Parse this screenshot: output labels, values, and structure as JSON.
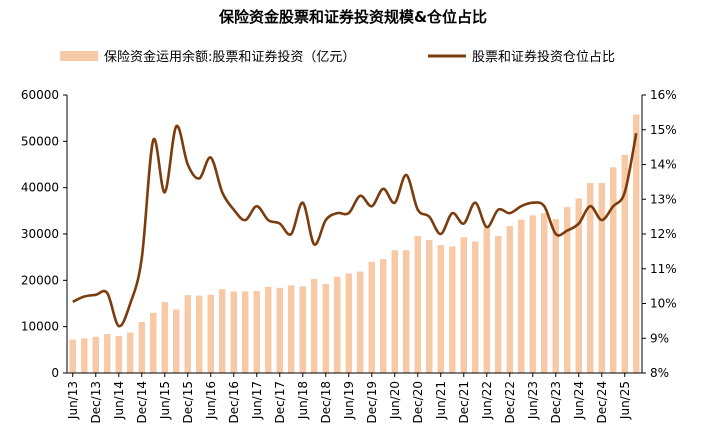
{
  "chart_data": {
    "type": "bar+line",
    "title": "保险资金股票和证券投资规模&仓位占比",
    "legend_position": "top",
    "grid": false,
    "colors": {
      "bar": "#F7C9A6",
      "line": "#7B3C0E"
    },
    "categories": [
      "Jun13",
      "Sep13",
      "Dec13",
      "Mar14",
      "Jun14",
      "Sep14",
      "Dec14",
      "Mar15",
      "Jun15",
      "Sep15",
      "Dec15",
      "Mar16",
      "Jun16",
      "Sep16",
      "Dec16",
      "Mar17",
      "Jun17",
      "Sep17",
      "Dec17",
      "Mar18",
      "Jun18",
      "Sep18",
      "Dec18",
      "Mar19",
      "Jun19",
      "Sep19",
      "Dec19",
      "Mar20",
      "Jun20",
      "Sep20",
      "Dec20",
      "Mar21",
      "Jun21",
      "Sep21",
      "Dec21",
      "Mar22",
      "Jun22",
      "Sep22",
      "Dec22",
      "Mar23",
      "Jun23",
      "Sep23",
      "Dec23",
      "Mar24",
      "Jun24",
      "Sep24",
      "Dec24",
      "Mar25",
      "Jun25",
      "Sep25"
    ],
    "x_tick_labels": [
      "Jun/13",
      "Dec/13",
      "Jun/14",
      "Dec/14",
      "Jun/15",
      "Dec/15",
      "Jun/16",
      "Dec/16",
      "Jun/17",
      "Dec/17",
      "Jun/18",
      "Dec/18",
      "Jun/19",
      "Dec/19",
      "Jun/20",
      "Dec/20",
      "Jun/21",
      "Dec/21",
      "Jun/22",
      "Dec/22",
      "Jun/23",
      "Dec/23",
      "Jun/24",
      "Dec/24",
      "Jun/25"
    ],
    "series": [
      {
        "name": "保险资金运用余额:股票和证券投资（亿元）",
        "type": "bar",
        "axis": "left",
        "values": [
          7200,
          7500,
          7800,
          8400,
          8000,
          8700,
          11000,
          13000,
          15300,
          13700,
          16800,
          16700,
          16900,
          18100,
          17600,
          17600,
          17700,
          18600,
          18400,
          18900,
          18700,
          20300,
          19200,
          20800,
          21500,
          21900,
          24000,
          24600,
          26500,
          26500,
          29600,
          28700,
          27600,
          27300,
          29300,
          28400,
          31500,
          29600,
          31700,
          33100,
          34000,
          34500,
          33200,
          35800,
          37700,
          41000,
          41000,
          44400,
          47100,
          55800
        ]
      },
      {
        "name": "股票和证券投资仓位占比",
        "type": "line",
        "axis": "right",
        "values": [
          10.05,
          10.2,
          10.25,
          10.3,
          9.35,
          10.0,
          11.3,
          14.7,
          13.2,
          15.1,
          14.0,
          13.6,
          14.2,
          13.2,
          12.7,
          12.4,
          12.8,
          12.4,
          12.3,
          12.0,
          12.9,
          11.7,
          12.4,
          12.6,
          12.6,
          13.1,
          12.8,
          13.3,
          12.9,
          13.7,
          12.7,
          12.5,
          12.0,
          12.6,
          12.3,
          12.9,
          12.2,
          12.7,
          12.6,
          12.8,
          12.9,
          12.8,
          12.0,
          12.1,
          12.3,
          12.8,
          12.4,
          12.8,
          13.2,
          14.9
        ]
      }
    ],
    "y_left": {
      "min": 0,
      "max": 60000,
      "ticks": [
        "0",
        "10000",
        "20000",
        "30000",
        "40000",
        "50000",
        "60000"
      ]
    },
    "y_right": {
      "min": 8,
      "max": 16,
      "ticks": [
        "8%",
        "9%",
        "10%",
        "11%",
        "12%",
        "13%",
        "14%",
        "15%",
        "16%"
      ]
    }
  }
}
